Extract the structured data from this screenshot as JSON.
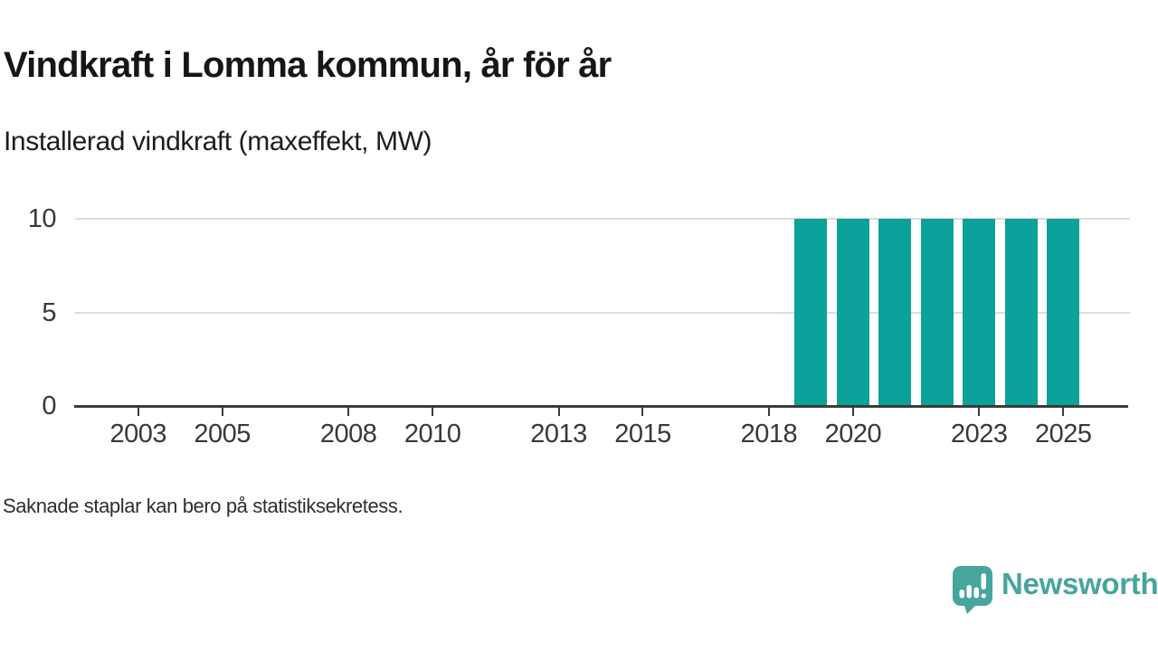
{
  "header": {
    "title": "Vindkraft i Lomma kommun, år för år",
    "subtitle": "Installerad vindkraft (maxeffekt, MW)"
  },
  "chart_data": {
    "type": "bar",
    "title": "Vindkraft i Lomma kommun, år för år",
    "subtitle": "Installerad vindkraft (maxeffekt, MW)",
    "xlabel": "",
    "ylabel": "Installerad vindkraft (maxeffekt, MW)",
    "categories": [
      2019,
      2020,
      2021,
      2022,
      2023,
      2024,
      2025
    ],
    "values": [
      10,
      10,
      10,
      10,
      10,
      10,
      10
    ],
    "x_domain": [
      2001.5,
      2026.5
    ],
    "ylim": [
      0,
      10
    ],
    "yticks": [
      0,
      5,
      10
    ],
    "xticks": [
      2003,
      2005,
      2008,
      2010,
      2013,
      2015,
      2018,
      2020,
      2023,
      2025
    ],
    "grid": "horizontal",
    "legend": "none",
    "bar_color": "#0aa29a",
    "grid_color": "#dcdcdc",
    "axis_color": "#3b3b3b",
    "tick_text_color": "#383838"
  },
  "footer": {
    "note": "Saknade staplar kan bero på statistiksekretess."
  },
  "branding": {
    "name": "Newsworthy",
    "color": "#46a59d",
    "icon": "newsworthy-speech-bubble-bar-chart-icon"
  }
}
